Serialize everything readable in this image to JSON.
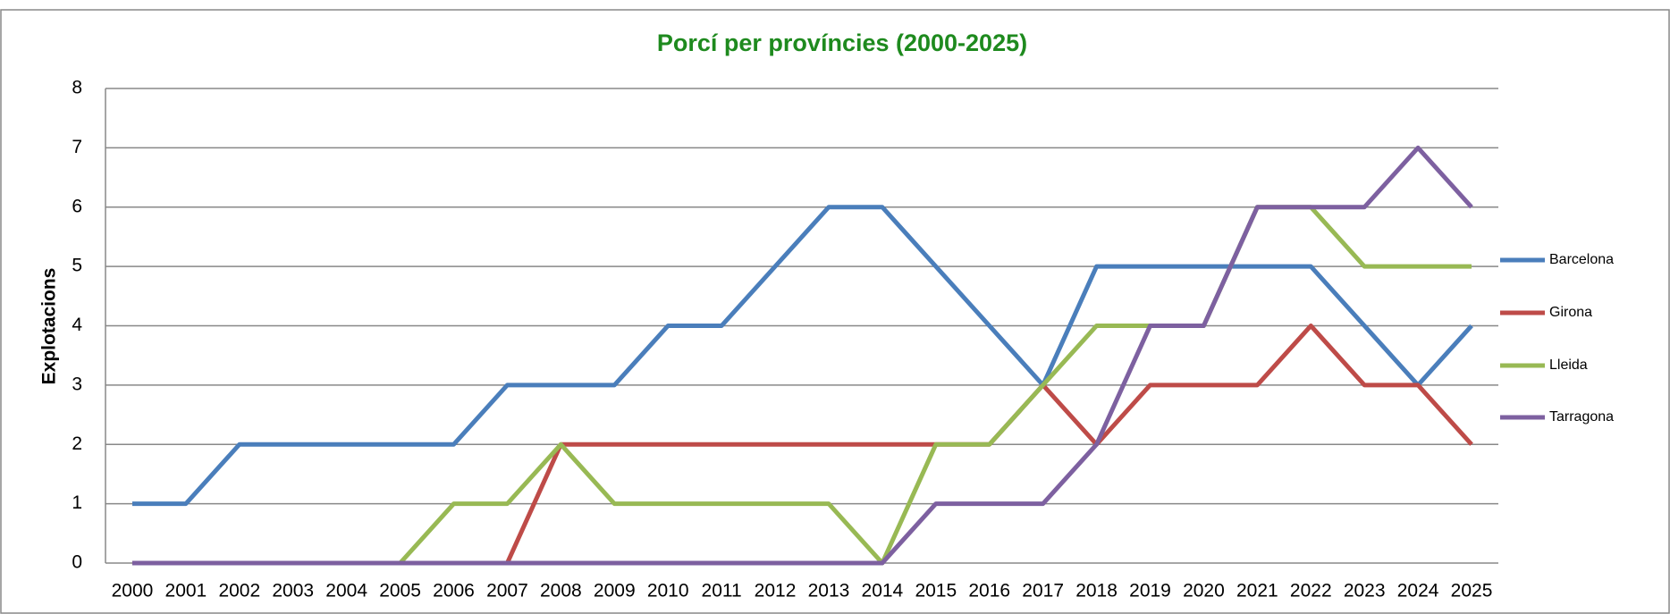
{
  "chart_data": {
    "type": "line",
    "title": "Porcí per províncies (2000-2025)",
    "y_label": "Explotacions",
    "categories": [
      "2000",
      "2001",
      "2002",
      "2003",
      "2004",
      "2005",
      "2006",
      "2007",
      "2008",
      "2009",
      "2010",
      "2011",
      "2012",
      "2013",
      "2014",
      "2015",
      "2016",
      "2017",
      "2018",
      "2019",
      "2020",
      "2021",
      "2022",
      "2023",
      "2024",
      "2025"
    ],
    "series": [
      {
        "name": "Barcelona",
        "color": "#4a7ebb",
        "values": [
          1,
          1,
          2,
          2,
          2,
          2,
          2,
          3,
          3,
          3,
          4,
          4,
          5,
          6,
          6,
          5,
          4,
          3,
          5,
          5,
          5,
          5,
          5,
          4,
          3,
          4
        ]
      },
      {
        "name": "Girona",
        "color": "#be4b48",
        "values": [
          0,
          0,
          0,
          0,
          0,
          0,
          0,
          0,
          2,
          2,
          2,
          2,
          2,
          2,
          2,
          2,
          2,
          3,
          2,
          3,
          3,
          3,
          4,
          3,
          3,
          2
        ]
      },
      {
        "name": "Lleida",
        "color": "#98b954",
        "values": [
          0,
          0,
          0,
          0,
          0,
          0,
          1,
          1,
          2,
          1,
          1,
          1,
          1,
          1,
          0,
          2,
          2,
          3,
          4,
          4,
          4,
          6,
          6,
          5,
          5,
          5
        ]
      },
      {
        "name": "Tarragona",
        "color": "#7d60a0",
        "values": [
          0,
          0,
          0,
          0,
          0,
          0,
          0,
          0,
          0,
          0,
          0,
          0,
          0,
          0,
          0,
          1,
          1,
          1,
          2,
          4,
          4,
          6,
          6,
          6,
          7,
          6
        ]
      }
    ],
    "ylim": [
      0,
      8
    ],
    "yticks": [
      0,
      1,
      2,
      3,
      4,
      5,
      6,
      7,
      8
    ],
    "grid": true,
    "legend": "right"
  }
}
